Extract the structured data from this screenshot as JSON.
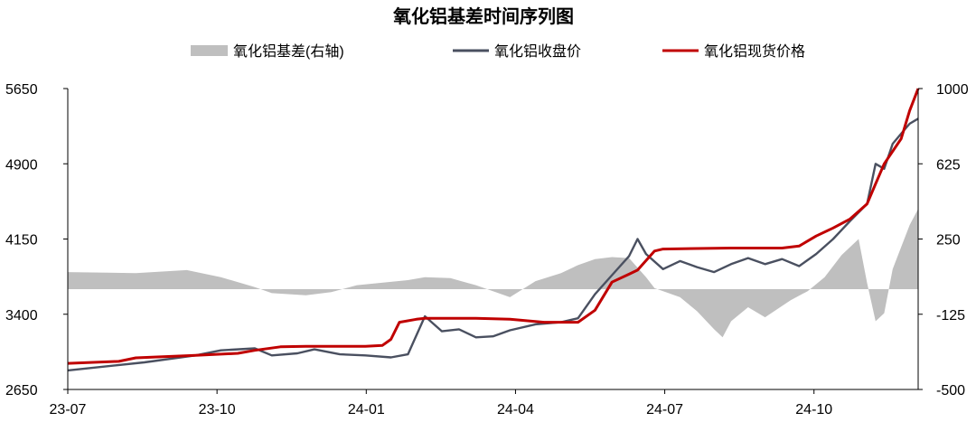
{
  "chart_data": {
    "type": "line",
    "title": "氧化铝基差时间序列图",
    "x_ticks": [
      "23-07",
      "23-10",
      "24-01",
      "24-04",
      "24-07",
      "24-10"
    ],
    "y_left": {
      "ylim": [
        2650,
        5650
      ],
      "ticks": [
        "2650",
        "3400",
        "4150",
        "4900",
        "5650"
      ]
    },
    "y_right": {
      "ylim": [
        -500,
        1000
      ],
      "ticks": [
        "-500",
        "-125",
        "250",
        "625",
        "1000"
      ]
    },
    "legend_position": "top",
    "grid": false,
    "series": [
      {
        "name": "氧化铝基差(右轴)",
        "kind": "area",
        "axis": "right",
        "color": "#bfbfbf",
        "points": [
          [
            0,
            85
          ],
          [
            0.08,
            80
          ],
          [
            0.14,
            95
          ],
          [
            0.18,
            60
          ],
          [
            0.22,
            10
          ],
          [
            0.24,
            -20
          ],
          [
            0.28,
            -30
          ],
          [
            0.31,
            -15
          ],
          [
            0.34,
            20
          ],
          [
            0.4,
            45
          ],
          [
            0.42,
            60
          ],
          [
            0.45,
            55
          ],
          [
            0.48,
            20
          ],
          [
            0.52,
            -40
          ],
          [
            0.55,
            40
          ],
          [
            0.58,
            80
          ],
          [
            0.6,
            120
          ],
          [
            0.62,
            150
          ],
          [
            0.64,
            160
          ],
          [
            0.66,
            155
          ],
          [
            0.68,
            60
          ],
          [
            0.69,
            5
          ],
          [
            0.72,
            -40
          ],
          [
            0.74,
            -110
          ],
          [
            0.76,
            -200
          ],
          [
            0.77,
            -240
          ],
          [
            0.78,
            -160
          ],
          [
            0.8,
            -90
          ],
          [
            0.82,
            -140
          ],
          [
            0.85,
            -55
          ],
          [
            0.87,
            -10
          ],
          [
            0.89,
            60
          ],
          [
            0.91,
            170
          ],
          [
            0.93,
            250
          ],
          [
            0.94,
            30
          ],
          [
            0.95,
            -160
          ],
          [
            0.96,
            -120
          ],
          [
            0.97,
            100
          ],
          [
            0.98,
            210
          ],
          [
            0.99,
            320
          ],
          [
            1.0,
            400
          ]
        ]
      },
      {
        "name": "氧化铝收盘价",
        "kind": "line",
        "axis": "left",
        "color": "#4a5060",
        "points": [
          [
            0,
            2840
          ],
          [
            0.09,
            2920
          ],
          [
            0.15,
            2990
          ],
          [
            0.18,
            3040
          ],
          [
            0.22,
            3060
          ],
          [
            0.24,
            2990
          ],
          [
            0.27,
            3010
          ],
          [
            0.29,
            3050
          ],
          [
            0.32,
            3000
          ],
          [
            0.35,
            2990
          ],
          [
            0.38,
            2970
          ],
          [
            0.4,
            3000
          ],
          [
            0.42,
            3380
          ],
          [
            0.44,
            3230
          ],
          [
            0.46,
            3250
          ],
          [
            0.48,
            3170
          ],
          [
            0.5,
            3180
          ],
          [
            0.52,
            3240
          ],
          [
            0.55,
            3300
          ],
          [
            0.58,
            3320
          ],
          [
            0.6,
            3360
          ],
          [
            0.62,
            3600
          ],
          [
            0.64,
            3790
          ],
          [
            0.66,
            3980
          ],
          [
            0.67,
            4150
          ],
          [
            0.68,
            4000
          ],
          [
            0.7,
            3850
          ],
          [
            0.72,
            3930
          ],
          [
            0.74,
            3870
          ],
          [
            0.76,
            3820
          ],
          [
            0.78,
            3900
          ],
          [
            0.8,
            3960
          ],
          [
            0.82,
            3900
          ],
          [
            0.84,
            3950
          ],
          [
            0.86,
            3880
          ],
          [
            0.88,
            4000
          ],
          [
            0.9,
            4150
          ],
          [
            0.92,
            4330
          ],
          [
            0.94,
            4500
          ],
          [
            0.95,
            4900
          ],
          [
            0.96,
            4850
          ],
          [
            0.97,
            5100
          ],
          [
            0.98,
            5200
          ],
          [
            0.99,
            5300
          ],
          [
            1.0,
            5350
          ]
        ]
      },
      {
        "name": "氧化铝现货价格",
        "kind": "line",
        "axis": "left",
        "color": "#c00000",
        "points": [
          [
            0,
            2910
          ],
          [
            0.06,
            2930
          ],
          [
            0.08,
            2965
          ],
          [
            0.15,
            2990
          ],
          [
            0.2,
            3010
          ],
          [
            0.22,
            3040
          ],
          [
            0.25,
            3075
          ],
          [
            0.28,
            3080
          ],
          [
            0.35,
            3080
          ],
          [
            0.37,
            3090
          ],
          [
            0.38,
            3150
          ],
          [
            0.39,
            3320
          ],
          [
            0.41,
            3350
          ],
          [
            0.42,
            3360
          ],
          [
            0.48,
            3360
          ],
          [
            0.52,
            3350
          ],
          [
            0.56,
            3320
          ],
          [
            0.6,
            3320
          ],
          [
            0.62,
            3440
          ],
          [
            0.64,
            3720
          ],
          [
            0.66,
            3800
          ],
          [
            0.67,
            3840
          ],
          [
            0.69,
            4030
          ],
          [
            0.7,
            4050
          ],
          [
            0.78,
            4060
          ],
          [
            0.84,
            4060
          ],
          [
            0.86,
            4080
          ],
          [
            0.88,
            4180
          ],
          [
            0.9,
            4260
          ],
          [
            0.92,
            4350
          ],
          [
            0.94,
            4500
          ],
          [
            0.95,
            4700
          ],
          [
            0.96,
            4900
          ],
          [
            0.98,
            5150
          ],
          [
            0.99,
            5430
          ],
          [
            1.0,
            5650
          ]
        ]
      }
    ]
  }
}
